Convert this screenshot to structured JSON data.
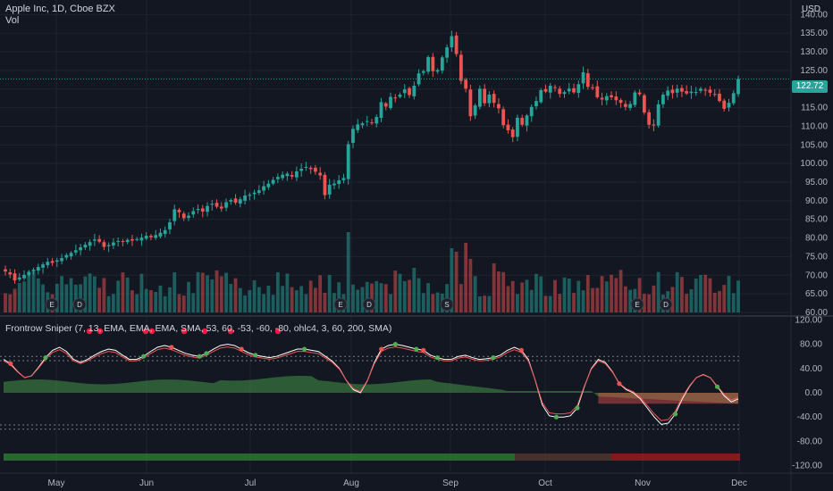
{
  "header": {
    "symbol_title": "Apple Inc, 1D, Cboe BZX",
    "volume_label": "Vol",
    "currency": "USD",
    "last_price": "122.72"
  },
  "indicator": {
    "title": "Frontrow Sniper (7, 13, EMA, EMA, EMA, SMA, 53, 60, -53, -60, -80, ohlc4, 3, 60, 200, SMA)"
  },
  "price_axis": [
    "140.00",
    "135.00",
    "130.00",
    "125.00",
    "120.00",
    "115.00",
    "110.00",
    "105.00",
    "100.00",
    "95.00",
    "90.00",
    "85.00",
    "80.00",
    "75.00",
    "70.00",
    "65.00",
    "60.00"
  ],
  "osc_axis": [
    "120.00",
    "80.00",
    "40.00",
    "0.00",
    "-40.00",
    "-80.00",
    "-120.00"
  ],
  "time_axis": [
    "May",
    "Jun",
    "Jul",
    "Aug",
    "Sep",
    "Oct",
    "Nov",
    "Dec"
  ],
  "events": [
    {
      "label": "E",
      "color": "#e57373"
    },
    {
      "label": "D",
      "color": "#5c9bff"
    },
    {
      "label": "E",
      "color": "#e57373"
    },
    {
      "label": "D",
      "color": "#5c9bff"
    },
    {
      "label": "S",
      "color": "#b2b5be"
    },
    {
      "label": "E",
      "color": "#e57373"
    },
    {
      "label": "D",
      "color": "#5c9bff"
    }
  ],
  "colors": {
    "up": "#26a69a",
    "down": "#ef5350",
    "background": "#131722",
    "grid": "#1f2330"
  },
  "chart_data": {
    "type": "candlestick",
    "close_values": [
      71.0,
      70.2,
      68.6,
      69.4,
      70.1,
      70.8,
      71.5,
      72.2,
      72.9,
      73.6,
      73.3,
      74.0,
      74.6,
      75.4,
      76.0,
      76.7,
      77.5,
      78.2,
      78.9,
      79.6,
      79.0,
      77.6,
      78.1,
      78.8,
      79.2,
      79.1,
      79.5,
      79.3,
      79.7,
      80.1,
      80.6,
      80.2,
      80.8,
      81.4,
      82.1,
      84.2,
      87.7,
      86.9,
      85.3,
      86.0,
      87.2,
      87.8,
      87.1,
      88.6,
      89.2,
      88.4,
      87.9,
      89.6,
      90.2,
      89.5,
      90.4,
      91.4,
      91.6,
      92.2,
      92.8,
      93.9,
      94.6,
      95.6,
      96.4,
      97.0,
      97.3,
      96.5,
      97.9,
      98.6,
      99.1,
      98.5,
      97.8,
      96.8,
      91.5,
      94.3,
      94.6,
      95.5,
      96.1,
      105.2,
      109.3,
      110.5,
      110.8,
      111.4,
      110.9,
      112.5,
      116.5,
      115.3,
      117.9,
      117.6,
      118.5,
      119.9,
      118.4,
      120.9,
      124.2,
      124.8,
      128.6,
      124.8,
      125.1,
      128.5,
      131.2,
      134.2,
      129.4,
      122.2,
      120.1,
      112.7,
      115.6,
      120.1,
      116.2,
      118.5,
      116.3,
      114.8,
      110.3,
      108.9,
      107.1,
      112.3,
      110.4,
      112.9,
      115.2,
      116.8,
      119.7,
      119.3,
      120.9,
      120.4,
      118.7,
      119.2,
      120.1,
      119.1,
      121.3,
      124.5,
      120.6,
      120.4,
      117.8,
      117.2,
      118.1,
      117.8,
      117.0,
      116.3,
      115.2,
      116.0,
      119.1,
      118.6,
      113.7,
      110.4,
      110.2,
      115.9,
      118.5,
      119.6,
      118.9,
      120.1,
      119.3,
      118.8,
      119.3,
      119.2,
      120.1,
      119.6,
      119.0,
      118.5,
      116.8,
      114.7,
      116.3,
      118.9,
      122.72
    ],
    "oscillator": [
      55,
      48,
      35,
      25,
      28,
      42,
      58,
      70,
      75,
      68,
      55,
      50,
      55,
      62,
      68,
      72,
      70,
      62,
      55,
      55,
      60,
      68,
      75,
      78,
      75,
      70,
      65,
      62,
      60,
      65,
      72,
      78,
      80,
      78,
      72,
      66,
      62,
      60,
      58,
      60,
      64,
      68,
      72,
      72,
      70,
      68,
      60,
      52,
      40,
      20,
      5,
      0,
      20,
      50,
      72,
      78,
      80,
      78,
      75,
      72,
      70,
      62,
      58,
      55,
      55,
      60,
      62,
      58,
      55,
      56,
      58,
      62,
      70,
      75,
      70,
      55,
      20,
      -20,
      -38,
      -40,
      -40,
      -38,
      -25,
      10,
      40,
      55,
      50,
      35,
      15,
      5,
      0,
      -10,
      -25,
      -40,
      -52,
      -50,
      -35,
      -10,
      10,
      25,
      30,
      25,
      10,
      -5,
      -15,
      -10
    ],
    "osc_ylim": [
      -120,
      120
    ],
    "price_ylim": [
      60,
      140
    ]
  }
}
